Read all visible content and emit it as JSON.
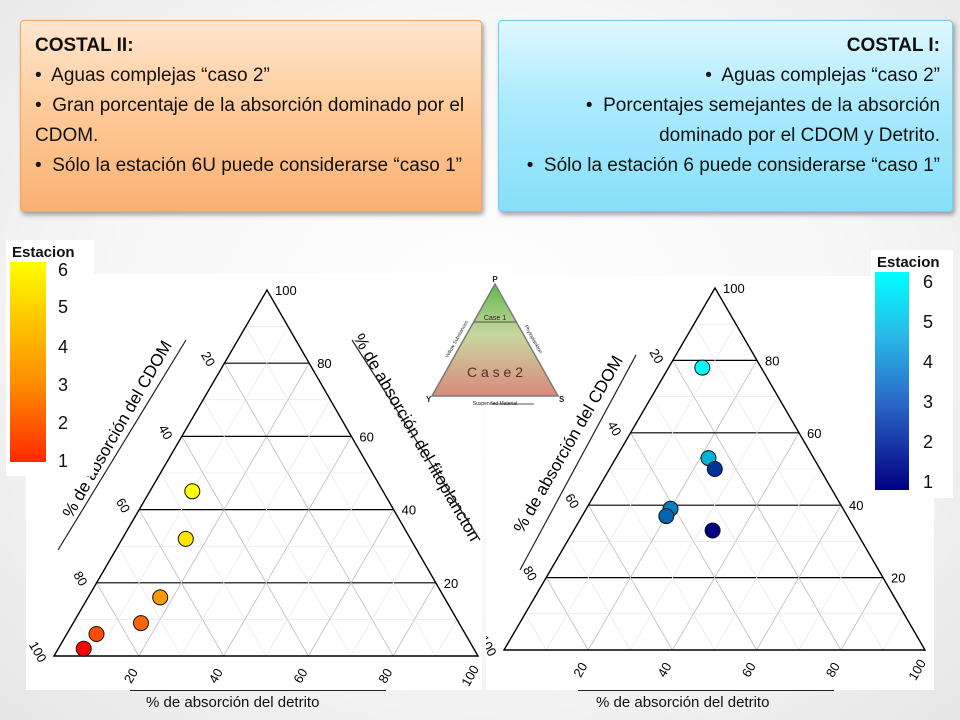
{
  "left_box": {
    "title": "COSTAL II:",
    "bullets": [
      "Aguas complejas “caso 2”",
      "Gran porcentaje de la absorción dominado por el CDOM.",
      "Sólo la estación 6U puede considerarse “caso 1”"
    ],
    "color": "#ffcb9a"
  },
  "right_box": {
    "title": "COSTAL I:",
    "bullets": [
      "Aguas complejas “caso 2”",
      "Porcentajes semejantes de la absorción dominado por el CDOM y Detrito.",
      "Sólo la estación 6 puede considerarse “caso 1”"
    ],
    "color": "#a9eafe"
  },
  "legend_left": {
    "title": "Estacion",
    "ticks": [
      "6",
      "5",
      "4",
      "3",
      "2",
      "1"
    ]
  },
  "legend_right": {
    "title": "Estacion",
    "ticks": [
      "6",
      "5",
      "4",
      "3",
      "2",
      "1"
    ]
  },
  "case_diagram": {
    "vertex_top": "P",
    "vertex_left": "Y",
    "vertex_right": "S",
    "label_case1": "Case 1",
    "label_case2": "C a s e  2",
    "side_left": "Yellow Substances",
    "side_right": "Phytoplankton",
    "side_bottom": "Suspended Material"
  },
  "axis_labels": {
    "left_cdom": "% de absorción del CDOM",
    "left_fito": "% de absorción del fitoplancton",
    "left_detrito": "% de absorción del detrito",
    "right_cdom": "% de absorción del CDOM",
    "right_detrito": "% de absorción del detrito"
  },
  "chart_data": [
    {
      "type": "scatter",
      "subtype": "ternary",
      "axes": [
        "% de absorción del detrito",
        "% de absorción del fitoplancton",
        "% de absorción del CDOM"
      ],
      "ticks": [
        20,
        40,
        60,
        80,
        100
      ],
      "color_scale": {
        "label": "Estacion",
        "min": 1,
        "max": 6,
        "low": "#ff0000",
        "high": "#ffff00"
      },
      "points": [
        {
          "estacion": 6,
          "detrito": 10,
          "fitoplancton": 45,
          "cdom": 45
        },
        {
          "estacion": 5.5,
          "detrito": 15,
          "fitoplancton": 32,
          "cdom": 53
        },
        {
          "estacion": 4,
          "detrito": 17,
          "fitoplancton": 16,
          "cdom": 67
        },
        {
          "estacion": 3,
          "detrito": 16,
          "fitoplancton": 9,
          "cdom": 75
        },
        {
          "estacion": 2.5,
          "detrito": 7,
          "fitoplancton": 6,
          "cdom": 87
        },
        {
          "estacion": 1,
          "detrito": 6,
          "fitoplancton": 2,
          "cdom": 92
        }
      ]
    },
    {
      "type": "scatter",
      "subtype": "ternary",
      "axes": [
        "% de absorción del detrito",
        "% de absorción del fitoplancton",
        "% de absorción del CDOM"
      ],
      "ticks": [
        20,
        40,
        60,
        80,
        100
      ],
      "color_scale": {
        "label": "Estacion",
        "min": 1,
        "max": 6,
        "low": "#000080",
        "high": "#00ffff"
      },
      "points": [
        {
          "estacion": 6,
          "detrito": 8,
          "fitoplancton": 78,
          "cdom": 14
        },
        {
          "estacion": 4.5,
          "detrito": 22,
          "fitoplancton": 53,
          "cdom": 25
        },
        {
          "estacion": 2,
          "detrito": 25,
          "fitoplancton": 50,
          "cdom": 25
        },
        {
          "estacion": 3.5,
          "detrito": 20,
          "fitoplancton": 39,
          "cdom": 41
        },
        {
          "estacion": 3,
          "detrito": 20,
          "fitoplancton": 37,
          "cdom": 43
        },
        {
          "estacion": 1,
          "detrito": 33,
          "fitoplancton": 33,
          "cdom": 34
        }
      ]
    }
  ]
}
